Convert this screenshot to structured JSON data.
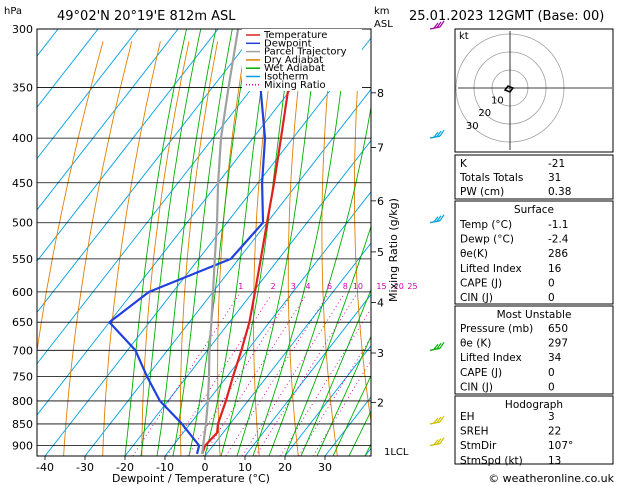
{
  "header": {
    "location": "49°02'N  20°19'E  812m  ASL",
    "datetime": "25.01.2023  12GMT  (Base: 00)"
  },
  "axis_labels": {
    "hpa": "hPa",
    "km": "km",
    "asl": "ASL",
    "xlabel": "Dewpoint / Temperature (°C)",
    "mixing": "Mixing Ratio (g/kg)",
    "lcl": "1LCL"
  },
  "legend": [
    {
      "label": "Temperature",
      "color": "#e02020",
      "style": "solid"
    },
    {
      "label": "Dewpoint",
      "color": "#2040e0",
      "style": "solid"
    },
    {
      "label": "Parcel Trajectory",
      "color": "#a0a0a0",
      "style": "solid"
    },
    {
      "label": "Dry Adiabat",
      "color": "#e08000",
      "style": "solid"
    },
    {
      "label": "Wet Adiabat",
      "color": "#00b000",
      "style": "solid"
    },
    {
      "label": "Isotherm",
      "color": "#00a0e0",
      "style": "solid"
    },
    {
      "label": "Mixing Ratio",
      "color": "#d000b0",
      "style": "dotted"
    }
  ],
  "chart_data": {
    "type": "line",
    "subtype": "skew-t log-p",
    "pressure_levels": [
      300,
      350,
      400,
      450,
      500,
      550,
      600,
      650,
      700,
      750,
      800,
      850,
      900
    ],
    "temperature_ticks": [
      -40,
      -30,
      -20,
      -10,
      0,
      10,
      20,
      30
    ],
    "xlim": [
      -40,
      35
    ],
    "ylim_hpa": [
      925,
      300
    ],
    "km_ticks": [
      {
        "km": "8",
        "p": 355
      },
      {
        "km": "7",
        "p": 410
      },
      {
        "km": "6",
        "p": 472
      },
      {
        "km": "5",
        "p": 540
      },
      {
        "km": "4",
        "p": 617
      },
      {
        "km": "3",
        "p": 705
      },
      {
        "km": "2",
        "p": 803
      }
    ],
    "mixing_ratio_labels": [
      "1",
      "2",
      "3",
      "4",
      "6",
      "8",
      "10",
      "15",
      "20",
      "25"
    ],
    "series": [
      {
        "name": "Temperature",
        "color": "#e02020",
        "p": [
          920,
          900,
          870,
          850,
          800,
          750,
          700,
          650,
          600,
          550,
          500,
          450,
          400,
          350,
          300
        ],
        "t": [
          -1.1,
          -2.0,
          -1.5,
          -3.0,
          -5.5,
          -8.5,
          -11.5,
          -15.0,
          -19.5,
          -24.5,
          -30.0,
          -36.0,
          -43.0,
          -51.0,
          -60.0
        ]
      },
      {
        "name": "Dewpoint",
        "color": "#2040e0",
        "p": [
          920,
          900,
          850,
          800,
          750,
          700,
          650,
          600,
          550,
          500,
          450,
          400,
          350,
          300
        ],
        "t": [
          -2.4,
          -3.5,
          -12.0,
          -22.0,
          -30.0,
          -38.0,
          -50.0,
          -46.0,
          -32.0,
          -31.0,
          -39.0,
          -47.0,
          -58.0,
          -65.0
        ]
      },
      {
        "name": "Parcel Trajectory",
        "color": "#a0a0a0",
        "p": [
          920,
          900,
          850,
          800,
          750,
          700,
          650,
          600,
          550,
          500,
          450,
          400,
          350,
          300
        ],
        "t": [
          -1.1,
          -2.5,
          -6.0,
          -10.0,
          -14.5,
          -19.5,
          -24.5,
          -30.0,
          -36.0,
          -42.5,
          -50.0,
          -58.0,
          -66.0,
          -75.0
        ]
      }
    ]
  },
  "indices": [
    {
      "label": "K",
      "value": "-21"
    },
    {
      "label": "Totals Totals",
      "value": "31"
    },
    {
      "label": "PW (cm)",
      "value": "0.38"
    }
  ],
  "surface": {
    "title": "Surface",
    "rows": [
      {
        "label": "Temp (°C)",
        "value": "-1.1"
      },
      {
        "label": "Dewp (°C)",
        "value": "-2.4"
      },
      {
        "label": "θe(K)",
        "value": "286"
      },
      {
        "label": "Lifted Index",
        "value": "16"
      },
      {
        "label": "CAPE (J)",
        "value": "0"
      },
      {
        "label": "CIN (J)",
        "value": "0"
      }
    ]
  },
  "most_unstable": {
    "title": "Most Unstable",
    "rows": [
      {
        "label": "Pressure (mb)",
        "value": "650"
      },
      {
        "label": "θe (K)",
        "value": "297"
      },
      {
        "label": "Lifted Index",
        "value": "34"
      },
      {
        "label": "CAPE (J)",
        "value": "0"
      },
      {
        "label": "CIN (J)",
        "value": "0"
      }
    ]
  },
  "hodograph_table": {
    "title": "Hodograph",
    "rows": [
      {
        "label": "EH",
        "value": "3"
      },
      {
        "label": "SREH",
        "value": "22"
      },
      {
        "label": "StmDir",
        "value": "107°"
      },
      {
        "label": "StmSpd (kt)",
        "value": "13"
      }
    ]
  },
  "hodograph": {
    "unit_label": "kt",
    "ring_labels": [
      "10",
      "20",
      "30"
    ]
  },
  "footer": "© weatheronline.co.uk",
  "wind_barbs": [
    {
      "p": 300,
      "color": "#a000a0"
    },
    {
      "p": 400,
      "color": "#00a0e0"
    },
    {
      "p": 500,
      "color": "#00a0e0"
    },
    {
      "p": 700,
      "color": "#00b000"
    },
    {
      "p": 850,
      "color": "#d0c000"
    },
    {
      "p": 900,
      "color": "#d0c000"
    }
  ]
}
